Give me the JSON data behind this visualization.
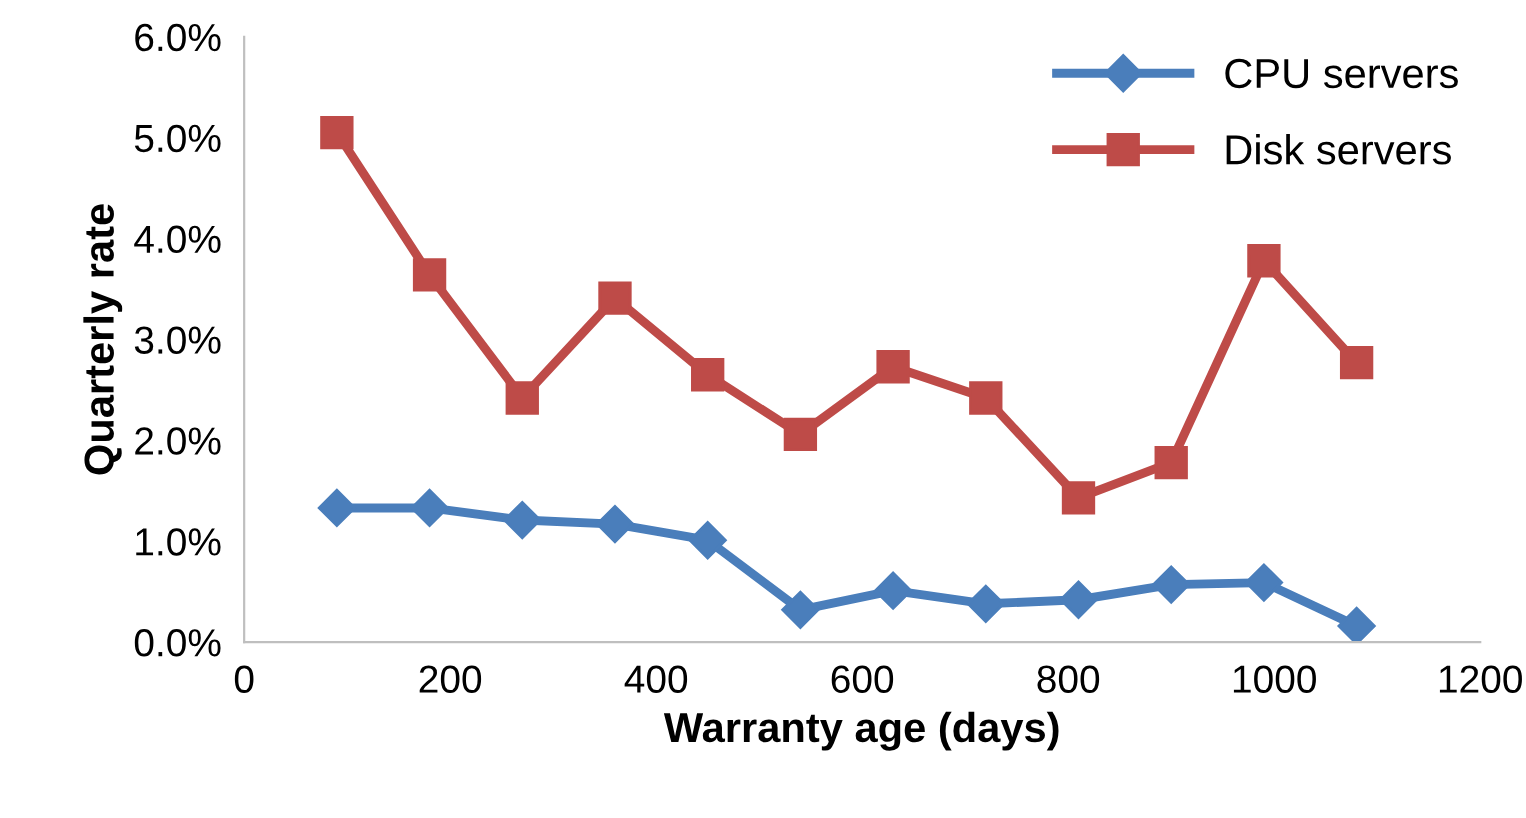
{
  "chart_data": {
    "type": "line",
    "xlabel": "Warranty age (days)",
    "ylabel": "Quarterly rate",
    "x": [
      90,
      180,
      270,
      360,
      450,
      540,
      630,
      720,
      810,
      900,
      990,
      1080
    ],
    "series": [
      {
        "name": "CPU servers",
        "color": "#4a7ebb",
        "marker": "diamond",
        "values": [
          1.33,
          1.33,
          1.21,
          1.17,
          1.01,
          0.32,
          0.51,
          0.38,
          0.42,
          0.57,
          0.59,
          0.16
        ]
      },
      {
        "name": "Disk servers",
        "color": "#be4b48",
        "marker": "square",
        "values": [
          5.05,
          3.64,
          2.42,
          3.41,
          2.65,
          2.06,
          2.73,
          2.42,
          1.43,
          1.78,
          3.78,
          2.77
        ]
      }
    ],
    "xlim": [
      0,
      1200
    ],
    "xticks": [
      0,
      200,
      400,
      600,
      800,
      1000,
      1200
    ],
    "ylim": [
      0,
      6
    ],
    "yticks": [
      {
        "value": 0,
        "label": "0.0%"
      },
      {
        "value": 1,
        "label": "1.0%"
      },
      {
        "value": 2,
        "label": "2.0%"
      },
      {
        "value": 3,
        "label": "3.0%"
      },
      {
        "value": 4,
        "label": "4.0%"
      },
      {
        "value": 5,
        "label": "5.0%"
      },
      {
        "value": 6,
        "label": "6.0%"
      }
    ],
    "grid": false,
    "legend": "top right",
    "line_style": "solid"
  }
}
